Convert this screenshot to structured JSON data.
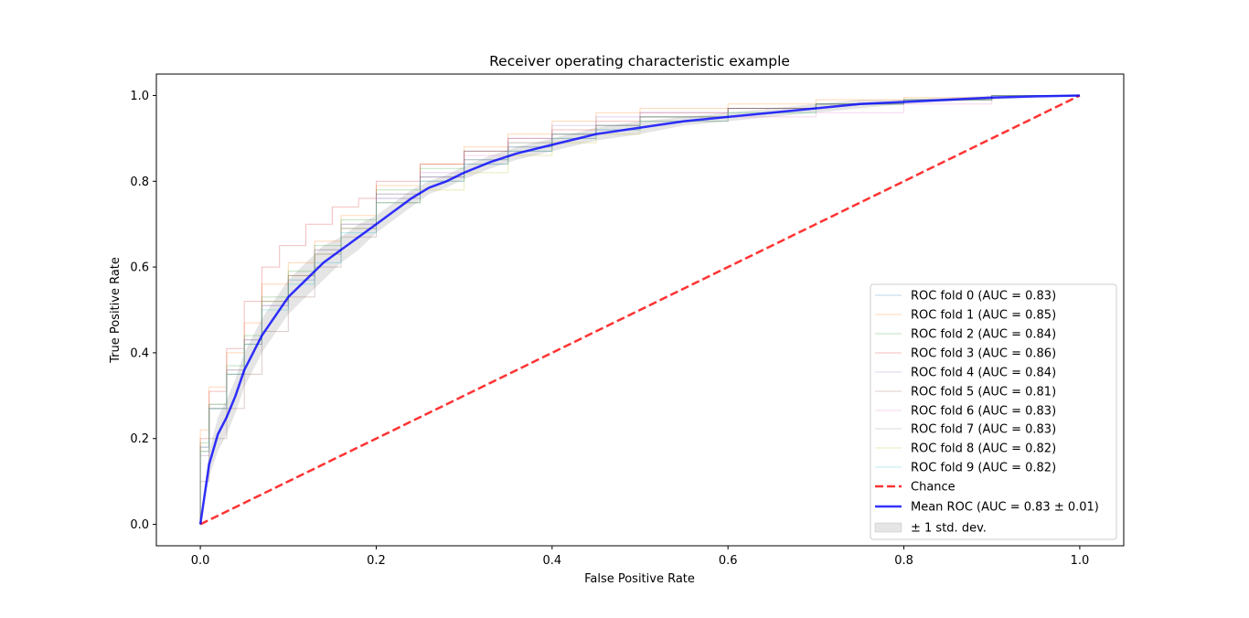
{
  "chart_data": {
    "type": "line",
    "title": "Receiver operating characteristic example",
    "xlabel": "False Positive Rate",
    "ylabel": "True Positive Rate",
    "xlim": [
      -0.05,
      1.05
    ],
    "ylim": [
      -0.05,
      1.05
    ],
    "x_ticks": [
      "0.0",
      "0.2",
      "0.4",
      "0.6",
      "0.8",
      "1.0"
    ],
    "y_ticks": [
      "0.0",
      "0.2",
      "0.4",
      "0.6",
      "0.8",
      "1.0"
    ],
    "grid": false,
    "legend_position": "lower-right",
    "series": [
      {
        "name": "ROC fold 0 (AUC = 0.83)",
        "color": "#1f77b4",
        "role": "fold",
        "x": [
          0,
          0.01,
          0.03,
          0.05,
          0.07,
          0.1,
          0.13,
          0.16,
          0.2,
          0.25,
          0.3,
          0.35,
          0.4,
          0.45,
          0.5,
          0.6,
          0.7,
          0.8,
          0.9,
          1.0
        ],
        "y": [
          0,
          0.18,
          0.27,
          0.35,
          0.42,
          0.51,
          0.57,
          0.63,
          0.69,
          0.76,
          0.81,
          0.85,
          0.88,
          0.91,
          0.93,
          0.95,
          0.97,
          0.98,
          0.99,
          1.0
        ]
      },
      {
        "name": "ROC fold 1 (AUC = 0.85)",
        "color": "#ff7f0e",
        "role": "fold",
        "x": [
          0,
          0.01,
          0.03,
          0.05,
          0.07,
          0.1,
          0.13,
          0.16,
          0.2,
          0.25,
          0.3,
          0.35,
          0.4,
          0.45,
          0.5,
          0.6,
          0.7,
          0.8,
          0.9,
          1.0
        ],
        "y": [
          0,
          0.22,
          0.32,
          0.4,
          0.47,
          0.56,
          0.61,
          0.66,
          0.72,
          0.79,
          0.84,
          0.88,
          0.91,
          0.94,
          0.96,
          0.97,
          0.98,
          0.99,
          0.995,
          1.0
        ]
      },
      {
        "name": "ROC fold 2 (AUC = 0.84)",
        "color": "#2ca02c",
        "role": "fold",
        "x": [
          0,
          0.01,
          0.03,
          0.05,
          0.07,
          0.1,
          0.13,
          0.16,
          0.2,
          0.25,
          0.3,
          0.35,
          0.4,
          0.45,
          0.5,
          0.6,
          0.7,
          0.8,
          0.9,
          1.0
        ],
        "y": [
          0,
          0.19,
          0.28,
          0.37,
          0.44,
          0.53,
          0.59,
          0.65,
          0.71,
          0.78,
          0.83,
          0.87,
          0.89,
          0.91,
          0.93,
          0.95,
          0.97,
          0.98,
          0.99,
          1.0
        ]
      },
      {
        "name": "ROC fold 3 (AUC = 0.86)",
        "color": "#d62728",
        "role": "fold",
        "x": [
          0,
          0.01,
          0.03,
          0.05,
          0.07,
          0.09,
          0.12,
          0.15,
          0.18,
          0.2,
          0.25,
          0.3,
          0.35,
          0.4,
          0.45,
          0.5,
          0.6,
          0.7,
          0.8,
          0.9,
          1.0
        ],
        "y": [
          0,
          0.2,
          0.31,
          0.41,
          0.52,
          0.6,
          0.65,
          0.7,
          0.74,
          0.76,
          0.8,
          0.84,
          0.87,
          0.9,
          0.92,
          0.94,
          0.96,
          0.97,
          0.98,
          0.99,
          1.0
        ]
      },
      {
        "name": "ROC fold 4 (AUC = 0.84)",
        "color": "#9467bd",
        "role": "fold",
        "x": [
          0,
          0.01,
          0.03,
          0.05,
          0.07,
          0.1,
          0.13,
          0.16,
          0.2,
          0.25,
          0.3,
          0.35,
          0.4,
          0.45,
          0.5,
          0.6,
          0.7,
          0.8,
          0.9,
          1.0
        ],
        "y": [
          0,
          0.16,
          0.27,
          0.36,
          0.43,
          0.52,
          0.58,
          0.64,
          0.7,
          0.77,
          0.82,
          0.87,
          0.9,
          0.93,
          0.95,
          0.96,
          0.97,
          0.98,
          0.99,
          1.0
        ]
      },
      {
        "name": "ROC fold 5 (AUC = 0.81)",
        "color": "#8c564b",
        "role": "fold",
        "x": [
          0,
          0.01,
          0.03,
          0.05,
          0.07,
          0.1,
          0.13,
          0.16,
          0.2,
          0.25,
          0.3,
          0.35,
          0.4,
          0.45,
          0.5,
          0.6,
          0.7,
          0.8,
          0.9,
          1.0
        ],
        "y": [
          0,
          0.1,
          0.2,
          0.27,
          0.35,
          0.45,
          0.53,
          0.6,
          0.67,
          0.75,
          0.8,
          0.84,
          0.87,
          0.9,
          0.92,
          0.95,
          0.97,
          0.98,
          0.99,
          1.0
        ]
      },
      {
        "name": "ROC fold 6 (AUC = 0.83)",
        "color": "#e377c2",
        "role": "fold",
        "x": [
          0,
          0.01,
          0.03,
          0.05,
          0.07,
          0.1,
          0.13,
          0.16,
          0.2,
          0.25,
          0.3,
          0.35,
          0.4,
          0.45,
          0.5,
          0.6,
          0.7,
          0.8,
          0.9,
          1.0
        ],
        "y": [
          0,
          0.17,
          0.27,
          0.35,
          0.42,
          0.51,
          0.58,
          0.63,
          0.69,
          0.76,
          0.81,
          0.86,
          0.89,
          0.91,
          0.93,
          0.94,
          0.95,
          0.96,
          0.98,
          1.0
        ]
      },
      {
        "name": "ROC fold 7 (AUC = 0.83)",
        "color": "#7f7f7f",
        "role": "fold",
        "x": [
          0,
          0.01,
          0.03,
          0.05,
          0.07,
          0.1,
          0.13,
          0.16,
          0.2,
          0.25,
          0.3,
          0.35,
          0.4,
          0.45,
          0.5,
          0.6,
          0.7,
          0.8,
          0.9,
          1.0
        ],
        "y": [
          0,
          0.18,
          0.28,
          0.36,
          0.43,
          0.52,
          0.58,
          0.64,
          0.7,
          0.77,
          0.81,
          0.85,
          0.88,
          0.91,
          0.93,
          0.95,
          0.97,
          0.98,
          0.99,
          1.0
        ]
      },
      {
        "name": "ROC fold 8 (AUC = 0.82)",
        "color": "#bcbd22",
        "role": "fold",
        "x": [
          0,
          0.01,
          0.03,
          0.05,
          0.07,
          0.1,
          0.13,
          0.16,
          0.2,
          0.25,
          0.3,
          0.35,
          0.4,
          0.45,
          0.5,
          0.6,
          0.7,
          0.8,
          0.9,
          1.0
        ],
        "y": [
          0,
          0.17,
          0.27,
          0.35,
          0.42,
          0.52,
          0.58,
          0.63,
          0.69,
          0.75,
          0.78,
          0.82,
          0.86,
          0.89,
          0.91,
          0.94,
          0.96,
          0.98,
          0.99,
          1.0
        ]
      },
      {
        "name": "ROC fold 9 (AUC = 0.82)",
        "color": "#17becf",
        "role": "fold",
        "x": [
          0,
          0.01,
          0.03,
          0.05,
          0.07,
          0.1,
          0.13,
          0.16,
          0.2,
          0.25,
          0.3,
          0.35,
          0.4,
          0.45,
          0.5,
          0.6,
          0.7,
          0.8,
          0.9,
          1.0
        ],
        "y": [
          0,
          0.17,
          0.27,
          0.35,
          0.42,
          0.5,
          0.56,
          0.61,
          0.68,
          0.75,
          0.8,
          0.84,
          0.87,
          0.9,
          0.92,
          0.94,
          0.96,
          0.98,
          0.99,
          1.0
        ]
      },
      {
        "name": "Chance",
        "color": "#ff0000",
        "role": "chance",
        "x": [
          0,
          1
        ],
        "y": [
          0,
          1
        ]
      },
      {
        "name": "Mean ROC (AUC = 0.83 ± 0.01)",
        "color": "#0000ff",
        "role": "mean",
        "x": [
          0,
          0.01,
          0.02,
          0.03,
          0.04,
          0.05,
          0.06,
          0.07,
          0.08,
          0.1,
          0.12,
          0.14,
          0.16,
          0.18,
          0.2,
          0.22,
          0.24,
          0.26,
          0.28,
          0.3,
          0.33,
          0.36,
          0.4,
          0.45,
          0.5,
          0.55,
          0.6,
          0.65,
          0.7,
          0.75,
          0.8,
          0.85,
          0.9,
          0.95,
          1.0
        ],
        "y": [
          0,
          0.14,
          0.21,
          0.25,
          0.3,
          0.36,
          0.4,
          0.44,
          0.47,
          0.53,
          0.57,
          0.61,
          0.64,
          0.67,
          0.7,
          0.73,
          0.76,
          0.785,
          0.8,
          0.82,
          0.845,
          0.865,
          0.885,
          0.91,
          0.925,
          0.94,
          0.95,
          0.96,
          0.97,
          0.98,
          0.985,
          0.99,
          0.995,
          0.998,
          1.0
        ]
      }
    ],
    "std_band": {
      "name": "± 1 std. dev.",
      "color": "#7f7f7f",
      "x": [
        0,
        0.01,
        0.02,
        0.03,
        0.04,
        0.05,
        0.06,
        0.07,
        0.08,
        0.1,
        0.12,
        0.14,
        0.16,
        0.18,
        0.2,
        0.22,
        0.24,
        0.26,
        0.28,
        0.3,
        0.33,
        0.36,
        0.4,
        0.45,
        0.5,
        0.55,
        0.6,
        0.65,
        0.7,
        0.75,
        0.8,
        0.85,
        0.9,
        0.95,
        1.0
      ],
      "lower": [
        0,
        0.11,
        0.17,
        0.21,
        0.26,
        0.32,
        0.36,
        0.4,
        0.43,
        0.49,
        0.53,
        0.57,
        0.61,
        0.64,
        0.68,
        0.71,
        0.74,
        0.77,
        0.785,
        0.805,
        0.83,
        0.85,
        0.87,
        0.895,
        0.91,
        0.93,
        0.94,
        0.95,
        0.96,
        0.97,
        0.98,
        0.985,
        0.99,
        0.995,
        1.0
      ],
      "upper": [
        0,
        0.17,
        0.25,
        0.29,
        0.34,
        0.4,
        0.44,
        0.48,
        0.51,
        0.57,
        0.61,
        0.65,
        0.67,
        0.7,
        0.72,
        0.75,
        0.78,
        0.8,
        0.815,
        0.835,
        0.86,
        0.88,
        0.9,
        0.925,
        0.94,
        0.95,
        0.96,
        0.97,
        0.98,
        0.99,
        0.99,
        0.995,
        1.0,
        1.0,
        1.0
      ]
    }
  }
}
